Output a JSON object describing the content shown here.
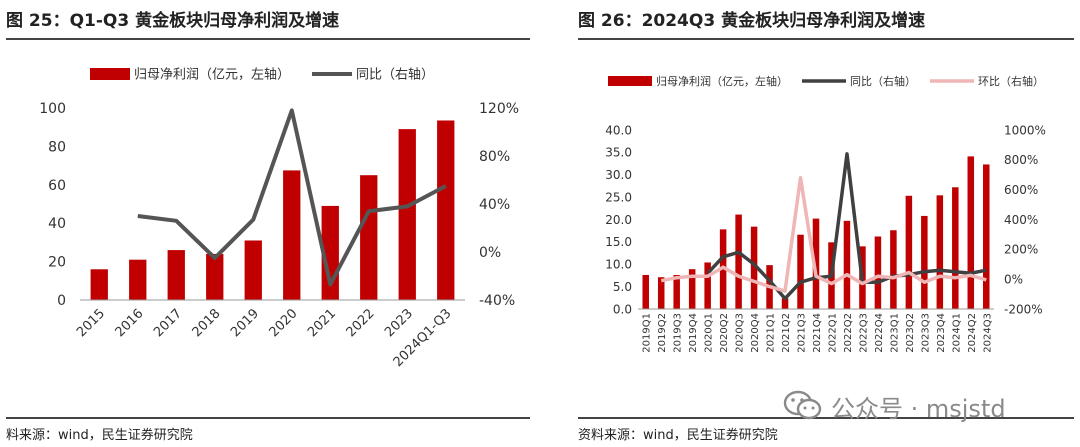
{
  "panel1": {
    "title": "图 25：Q1-Q3 黄金板块归母净利润及增速",
    "source": "料来源：wind，民生证券研究院",
    "chart_data": {
      "type": "bar+line",
      "categories": [
        "2015",
        "2016",
        "2017",
        "2018",
        "2019",
        "2020",
        "2021",
        "2022",
        "2023",
        "2024Q1-Q3"
      ],
      "series": [
        {
          "name": "归母净利润（亿元，左轴）",
          "kind": "bar",
          "axis": "left",
          "color": "#c00000",
          "values": [
            16,
            21,
            26,
            24,
            31,
            67.5,
            49,
            65,
            89,
            93.5
          ]
        },
        {
          "name": "同比（右轴）",
          "kind": "line",
          "axis": "right",
          "color": "#555555",
          "values": [
            null,
            30,
            26,
            -5,
            27,
            118,
            -27,
            34,
            38,
            55
          ]
        }
      ],
      "yleft": {
        "min": 0,
        "max": 100,
        "ticks": [
          0,
          20,
          40,
          60,
          80,
          100
        ]
      },
      "yright": {
        "min": -40,
        "max": 120,
        "ticks": [
          -40,
          0,
          40,
          80,
          120
        ],
        "labels": [
          "-40%",
          "0%",
          "40%",
          "80%",
          "120%"
        ]
      },
      "legend": "top"
    }
  },
  "panel2": {
    "title": "图 26：2024Q3 黄金板块归母净利润及增速",
    "source": "资料来源：wind，民生证券研究院",
    "chart_data": {
      "type": "bar+line",
      "categories": [
        "2019Q1",
        "2019Q2",
        "2019Q3",
        "2019Q4",
        "2020Q1",
        "2020Q2",
        "2020Q3",
        "2020Q4",
        "2021Q1",
        "2021Q2",
        "2021Q3",
        "2021Q4",
        "2022Q1",
        "2022Q2",
        "2022Q3",
        "2022Q4",
        "2023Q1",
        "2023Q2",
        "2023Q3",
        "2023Q4",
        "2024Q1",
        "2024Q2",
        "2024Q3"
      ],
      "series": [
        {
          "name": "归母净利润（亿元，左轴）",
          "kind": "bar",
          "axis": "left",
          "color": "#c00000",
          "values": [
            7.6,
            7.1,
            7.6,
            8.9,
            10.4,
            17.8,
            21.1,
            18.4,
            9.8,
            2.4,
            16.6,
            20.2,
            14.9,
            19.7,
            14.0,
            16.2,
            17.6,
            25.3,
            20.8,
            25.4,
            27.2,
            34.1,
            32.3
          ]
        },
        {
          "name": "同比（右轴）",
          "kind": "line",
          "axis": "right",
          "color": "#404040",
          "values": [
            null,
            null,
            null,
            null,
            40,
            150,
            180,
            100,
            -10,
            -130,
            -20,
            10,
            20,
            840,
            -20,
            -20,
            20,
            30,
            50,
            60,
            50,
            40,
            60
          ]
        },
        {
          "name": "环比（右轴）",
          "kind": "line",
          "axis": "right",
          "color": "#f0b6b6",
          "values": [
            null,
            -10,
            10,
            20,
            20,
            80,
            20,
            -15,
            -50,
            -80,
            680,
            20,
            -30,
            30,
            -30,
            20,
            10,
            45,
            -20,
            20,
            10,
            25,
            -5
          ]
        }
      ],
      "yleft": {
        "min": 0,
        "max": 40,
        "ticks": [
          0.0,
          5.0,
          10.0,
          15.0,
          20.0,
          25.0,
          30.0,
          35.0,
          40.0
        ],
        "labels": [
          "0.0",
          "5.0",
          "10.0",
          "15.0",
          "20.0",
          "25.0",
          "30.0",
          "35.0",
          "40.0"
        ]
      },
      "yright": {
        "min": -200,
        "max": 1000,
        "ticks": [
          -200,
          0,
          200,
          400,
          600,
          800,
          1000
        ],
        "labels": [
          "-200%",
          "0%",
          "200%",
          "400%",
          "600%",
          "800%",
          "1000%"
        ]
      },
      "legend": "top"
    }
  },
  "watermark": {
    "text": "公众号 · msjstd",
    "icon": "wechat-icon"
  }
}
